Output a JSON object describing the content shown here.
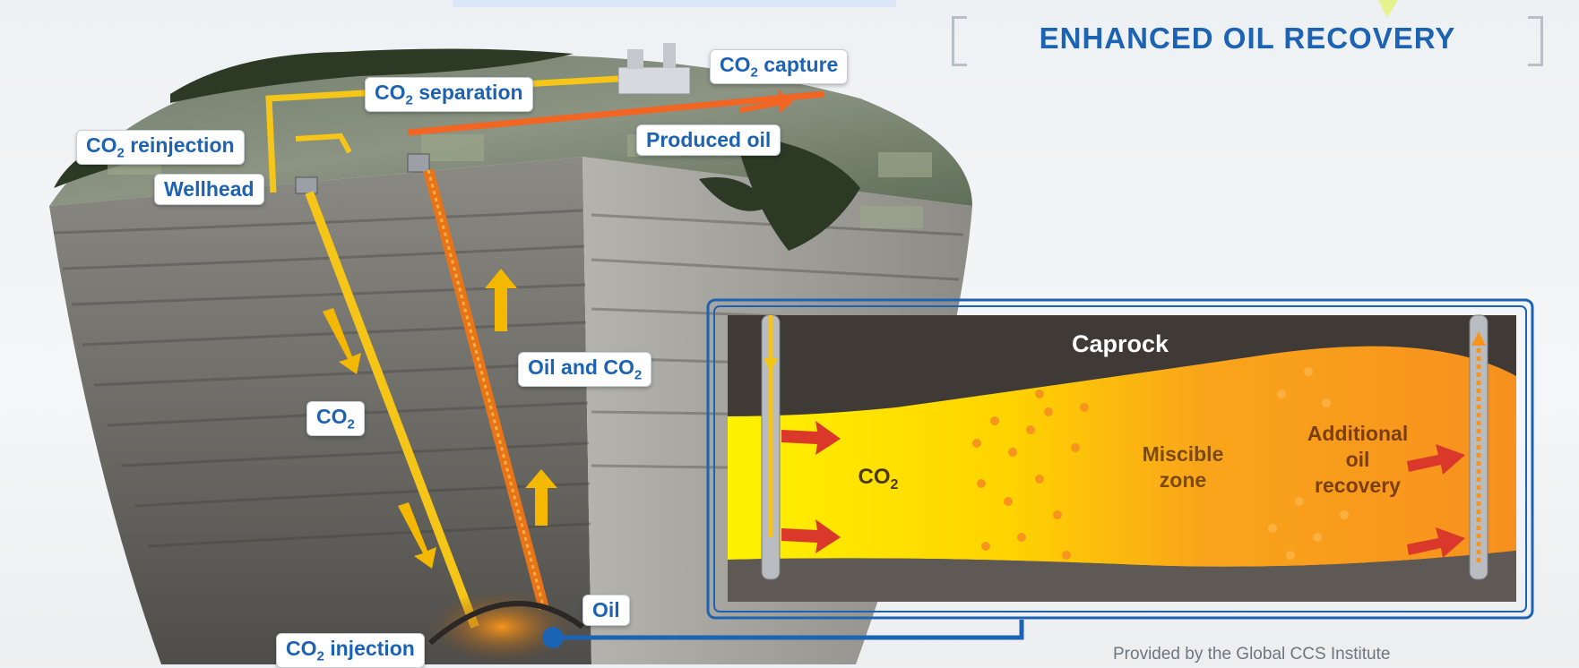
{
  "title": "ENHANCED OIL RECOVERY",
  "callouts": {
    "co2_capture": {
      "main": "CO",
      "sub": "2",
      "tail": " capture"
    },
    "co2_separation": {
      "main": "CO",
      "sub": "2",
      "tail": " separation"
    },
    "co2_reinjection": {
      "main": "CO",
      "sub": "2",
      "tail": " reinjection"
    },
    "wellhead": "Wellhead",
    "produced_oil": "Produced oil",
    "oil_and_co2": {
      "main": "Oil and CO",
      "sub": "2"
    },
    "co2": {
      "main": "CO",
      "sub": "2"
    },
    "oil": "Oil",
    "co2_injection": {
      "main": "CO",
      "sub": "2",
      "tail": " injection"
    }
  },
  "inset": {
    "caprock": "Caprock",
    "co2": {
      "main": "CO",
      "sub": "2"
    },
    "miscible_line1": "Miscible",
    "miscible_line2": "zone",
    "additional_line1": "Additional",
    "additional_line2": "oil",
    "additional_line3": "recovery"
  },
  "credit": "Provided by the Global CCS Institute",
  "colors": {
    "accent_blue": "#1d63b3",
    "co2_pipe": "#f5c518",
    "oil_pipe": "#e8741a",
    "produced_oil_pipe": "#f26522",
    "miscible_orange": "#f7941d",
    "caprock": "#4a4440"
  }
}
